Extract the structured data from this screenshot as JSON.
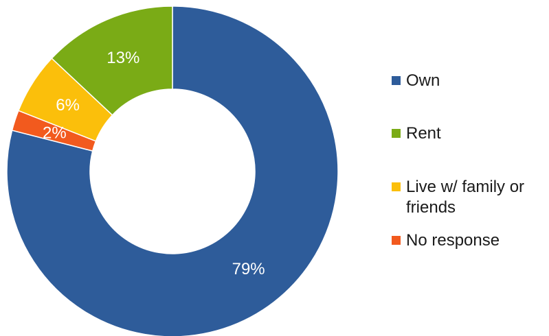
{
  "chart_data": {
    "type": "pie",
    "donut": true,
    "legend_position": "right",
    "slices": [
      {
        "label": "Own",
        "value": 79,
        "value_label": "79%",
        "color": "#2E5C9A"
      },
      {
        "label": "No response",
        "value": 2,
        "value_label": "2%",
        "color": "#F25A1E"
      },
      {
        "label": "Live w/ family or friends",
        "value": 6,
        "value_label": "6%",
        "color": "#FBBF0B"
      },
      {
        "label": "Rent",
        "value": 13,
        "value_label": "13%",
        "color": "#7AAB16"
      }
    ],
    "legend": [
      {
        "label": "Own",
        "color": "#2E5C9A"
      },
      {
        "label": "Rent",
        "color": "#7AAB16"
      },
      {
        "label": "Live w/ family or friends",
        "color": "#FBBF0B"
      },
      {
        "label": "No response",
        "color": "#F25A1E"
      }
    ]
  }
}
